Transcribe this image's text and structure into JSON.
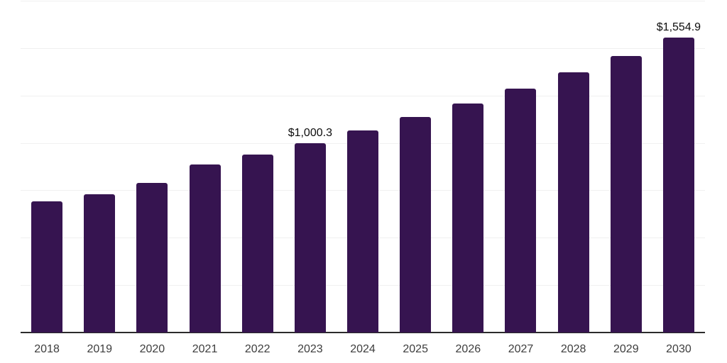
{
  "chart_data": {
    "type": "bar",
    "title": "",
    "xlabel": "",
    "ylabel": "",
    "categories": [
      "2018",
      "2019",
      "2020",
      "2021",
      "2022",
      "2023",
      "2024",
      "2025",
      "2026",
      "2027",
      "2028",
      "2029",
      "2030"
    ],
    "values": [
      690,
      730,
      790,
      885,
      940,
      1000.3,
      1065,
      1135,
      1208,
      1287,
      1371,
      1460,
      1554.9
    ],
    "data_labels": {
      "2023": "$1,000.3",
      "2030": "$1,554.9"
    },
    "ylim": [
      0,
      1750
    ],
    "grid_interval": 250,
    "grid": "horizontal",
    "legend": "none",
    "colors": {
      "bar": "#361450",
      "axis_line": "#2b2b2b",
      "gridline": "#f0f0f0",
      "data_label_text": "#0d0d0d",
      "tick_label_text": "#3d3d3d",
      "background": "#ffffff"
    }
  }
}
